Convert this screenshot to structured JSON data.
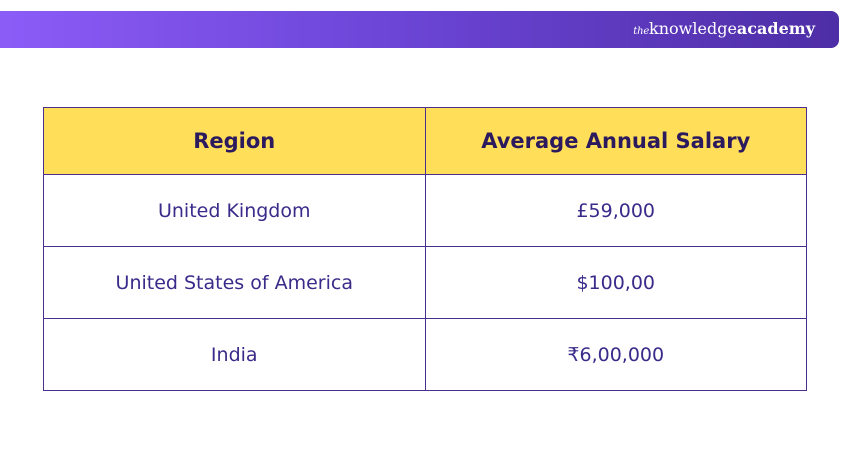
{
  "brand": {
    "the": "the",
    "knowledge": "knowledge",
    "academy": "academy"
  },
  "table": {
    "headers": [
      "Region",
      "Average Annual Salary"
    ],
    "rows": [
      [
        "United Kingdom",
        "£59,000"
      ],
      [
        "United States of America",
        "$100,00"
      ],
      [
        "India",
        "₹6,00,000"
      ]
    ]
  }
}
